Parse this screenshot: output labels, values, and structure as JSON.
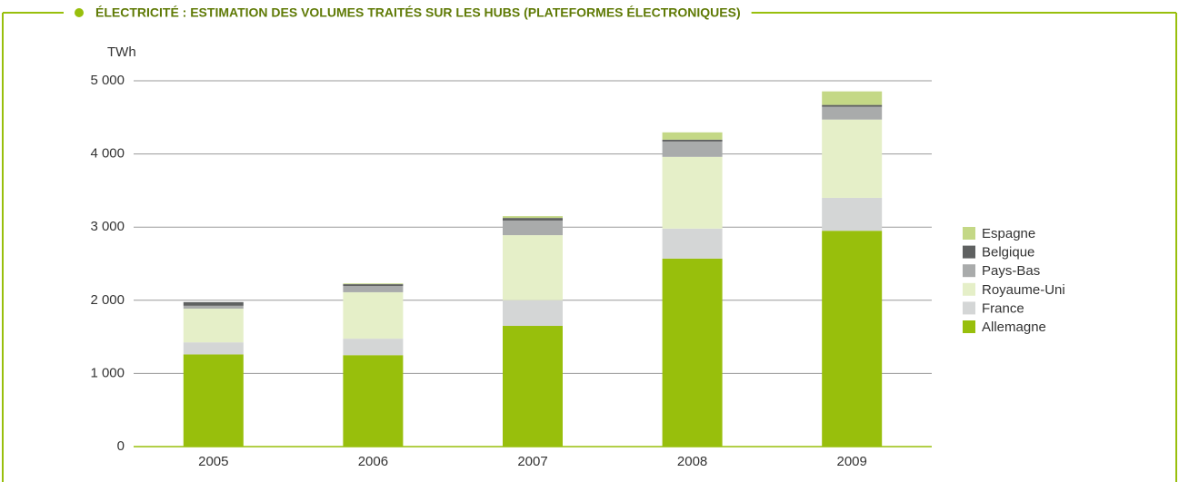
{
  "chart_data": {
    "type": "stacked_bar",
    "title": "ÉLECTRICITÉ : ESTIMATION DES VOLUMES TRAITÉS SUR LES HUBS (PLATEFORMES ÉLECTRONIQUES)",
    "y_label": "TWh",
    "categories": [
      "2005",
      "2006",
      "2007",
      "2008",
      "2009"
    ],
    "series": [
      {
        "name": "Allemagne",
        "color": "#98bf0c",
        "values": [
          1260,
          1250,
          1650,
          2570,
          2950
        ]
      },
      {
        "name": "France",
        "color": "#d4d6d6",
        "values": [
          165,
          225,
          350,
          410,
          450
        ]
      },
      {
        "name": "Royaume-Uni",
        "color": "#e5efc8",
        "values": [
          460,
          635,
          890,
          980,
          1070
        ]
      },
      {
        "name": "Pays-Bas",
        "color": "#a9abab",
        "values": [
          40,
          85,
          200,
          210,
          175
        ]
      },
      {
        "name": "Belgique",
        "color": "#5f6161",
        "values": [
          50,
          25,
          35,
          25,
          25
        ]
      },
      {
        "name": "Espagne",
        "color": "#c4d886",
        "values": [
          0,
          10,
          25,
          100,
          185
        ]
      }
    ],
    "ylim": [
      0,
      5000
    ],
    "yticks": [
      0,
      {
        "value": 1000,
        "label": "1 000"
      },
      {
        "value": 2000,
        "label": "2 000"
      },
      {
        "value": 3000,
        "label": "3 000"
      },
      {
        "value": 4000,
        "label": "4 000"
      },
      {
        "value": 5000,
        "label": "5 000"
      }
    ],
    "grid": true,
    "legend": "right"
  }
}
